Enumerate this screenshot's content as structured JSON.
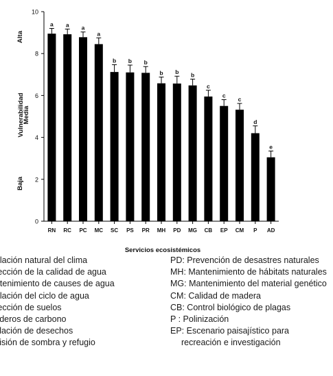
{
  "chart_data": {
    "type": "bar",
    "categories": [
      "RN",
      "RC",
      "PC",
      "MC",
      "SC",
      "PS",
      "PR",
      "MH",
      "PD",
      "MG",
      "CB",
      "EP",
      "CM",
      "P",
      "AD"
    ],
    "values": [
      8.95,
      8.92,
      8.78,
      8.45,
      7.12,
      7.1,
      7.08,
      6.58,
      6.57,
      6.48,
      5.95,
      5.5,
      5.32,
      4.2,
      3.05
    ],
    "errors": [
      0.25,
      0.25,
      0.25,
      0.3,
      0.35,
      0.35,
      0.3,
      0.3,
      0.35,
      0.3,
      0.3,
      0.3,
      0.3,
      0.35,
      0.3
    ],
    "letters": [
      "a",
      "a",
      "a",
      "a",
      "b",
      "b",
      "b",
      "b",
      "b",
      "b",
      "c",
      "c",
      "c",
      "d",
      "e"
    ],
    "xlabel": "Servicios ecosistémicos",
    "ylabel": "Vulnerabilidad",
    "ylim": [
      0,
      10
    ],
    "yticks": [
      "0",
      "2",
      "4",
      "6",
      "8",
      "10"
    ],
    "yregions": [
      "Alta",
      "Media",
      "Baja"
    ],
    "grid": false,
    "bar_color": "#000000"
  },
  "legend_left": [
    "gulación natural del clima",
    "otección de la calidad de agua",
    "antenimiento de causes de agua",
    "gulación del ciclo de agua",
    "otección de suelos",
    "mideros de carbono",
    "milación de desechos",
    "ovisión de sombra y refugio"
  ],
  "legend_right": [
    "PD: Prevención de desastres naturales",
    "MH: Mantenimiento de hábitats naturales",
    "MG: Mantenimiento del material genético",
    "CM: Calidad de madera",
    "CB: Control biológico de plagas",
    "P : Polinización",
    "EP: Escenario paisajístico para",
    "recreación e investigación"
  ]
}
